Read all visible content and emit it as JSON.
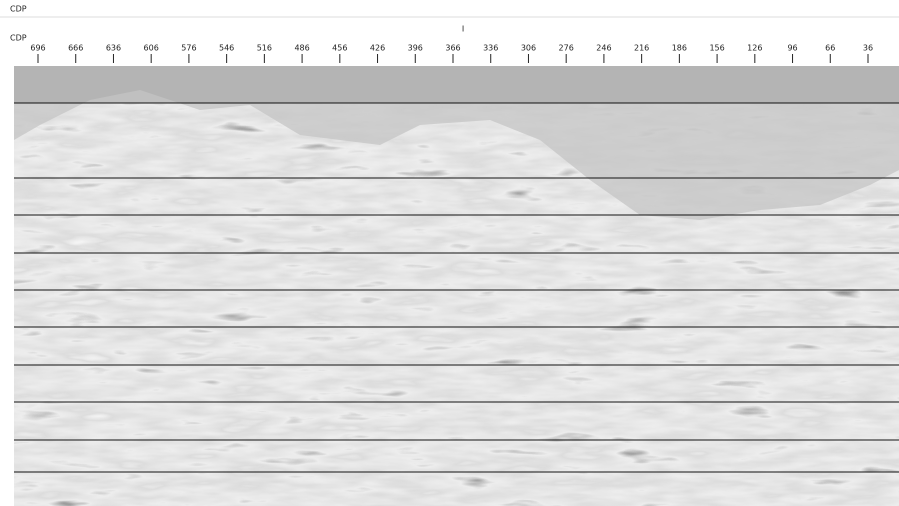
{
  "header": {
    "top_label": "CDP",
    "axis_label": "CDP",
    "marker": "I"
  },
  "axis": {
    "ticks": [
      "696",
      "666",
      "636",
      "606",
      "576",
      "546",
      "516",
      "486",
      "456",
      "426",
      "396",
      "366",
      "336",
      "306",
      "276",
      "246",
      "216",
      "186",
      "156",
      "126",
      "96",
      "66",
      "36"
    ]
  }
}
